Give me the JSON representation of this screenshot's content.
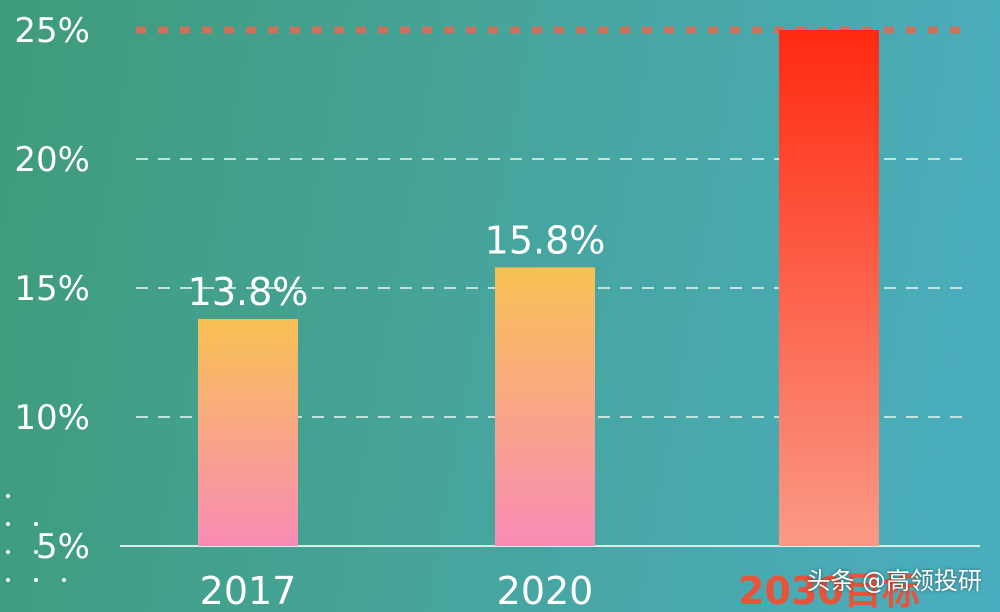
{
  "chart_data": {
    "type": "bar",
    "categories": [
      "2017",
      "2020",
      "2030目标"
    ],
    "values": [
      13.8,
      15.8,
      25
    ],
    "data_labels": [
      "13.8%",
      "15.8%",
      ""
    ],
    "ylim": [
      5,
      25
    ],
    "yticks": [
      5,
      10,
      15,
      20,
      25
    ],
    "ytick_labels": [
      "5%",
      "10%",
      "15%",
      "20%",
      "25%"
    ],
    "grid": true,
    "title": "",
    "xlabel": "",
    "ylabel": "",
    "target_line_value": 25,
    "colors": {
      "bar_top": "#f9c154",
      "bar_bottom": "#f98cb6",
      "target_top": "#ff2a10",
      "target_bottom": "#fa9a86",
      "target_line": "#c8735e",
      "grid": "#d8eee8",
      "axis": "#d8eee8",
      "highlight_label": "#e8533a"
    }
  },
  "watermark": "头条 @高领投研"
}
